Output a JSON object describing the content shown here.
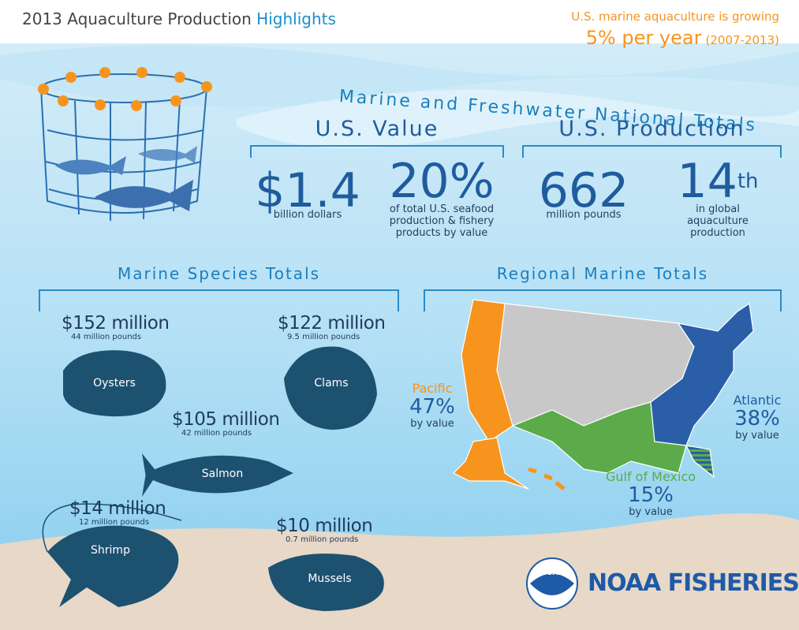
{
  "header": {
    "title": "2013 Aquaculture Production",
    "title_highlight": "Highlights",
    "growth_note": "U.S. marine aquaculture is growing",
    "growth_rate": "5% per year",
    "growth_period": "(2007-2013)"
  },
  "national": {
    "title": "Marine and Freshwater National Totals",
    "value": {
      "heading": "U.S. Value",
      "stats": [
        {
          "figure": "$1.4",
          "caption": "billion dollars"
        },
        {
          "figure": "20%",
          "caption": "of total U.S. seafood production & fishery products by value"
        }
      ]
    },
    "production": {
      "heading": "U.S. Production",
      "stats": [
        {
          "figure": "662",
          "caption": "million pounds"
        },
        {
          "figure": "14",
          "suffix": "th",
          "caption": "in global aquaculture production"
        }
      ]
    }
  },
  "species": {
    "title": "Marine Species Totals",
    "items": [
      {
        "name": "Oysters",
        "value": "$152 million",
        "pounds": "44 million pounds"
      },
      {
        "name": "Clams",
        "value": "$122 million",
        "pounds": "9.5 million pounds"
      },
      {
        "name": "Salmon",
        "value": "$105 million",
        "pounds": "42 million pounds"
      },
      {
        "name": "Shrimp",
        "value": "$14 million",
        "pounds": "12 million pounds"
      },
      {
        "name": "Mussels",
        "value": "$10 million",
        "pounds": "0.7 million pounds"
      }
    ]
  },
  "regions": {
    "title": "Regional Marine Totals",
    "items": [
      {
        "name": "Pacific",
        "share": "47%",
        "basis": "by value"
      },
      {
        "name": "Atlantic",
        "share": "38%",
        "basis": "by value"
      },
      {
        "name": "Gulf of Mexico",
        "share": "15%",
        "basis": "by value"
      }
    ]
  },
  "logo": {
    "name": "NOAA FISHERIES",
    "emblem": "NOAA"
  }
}
